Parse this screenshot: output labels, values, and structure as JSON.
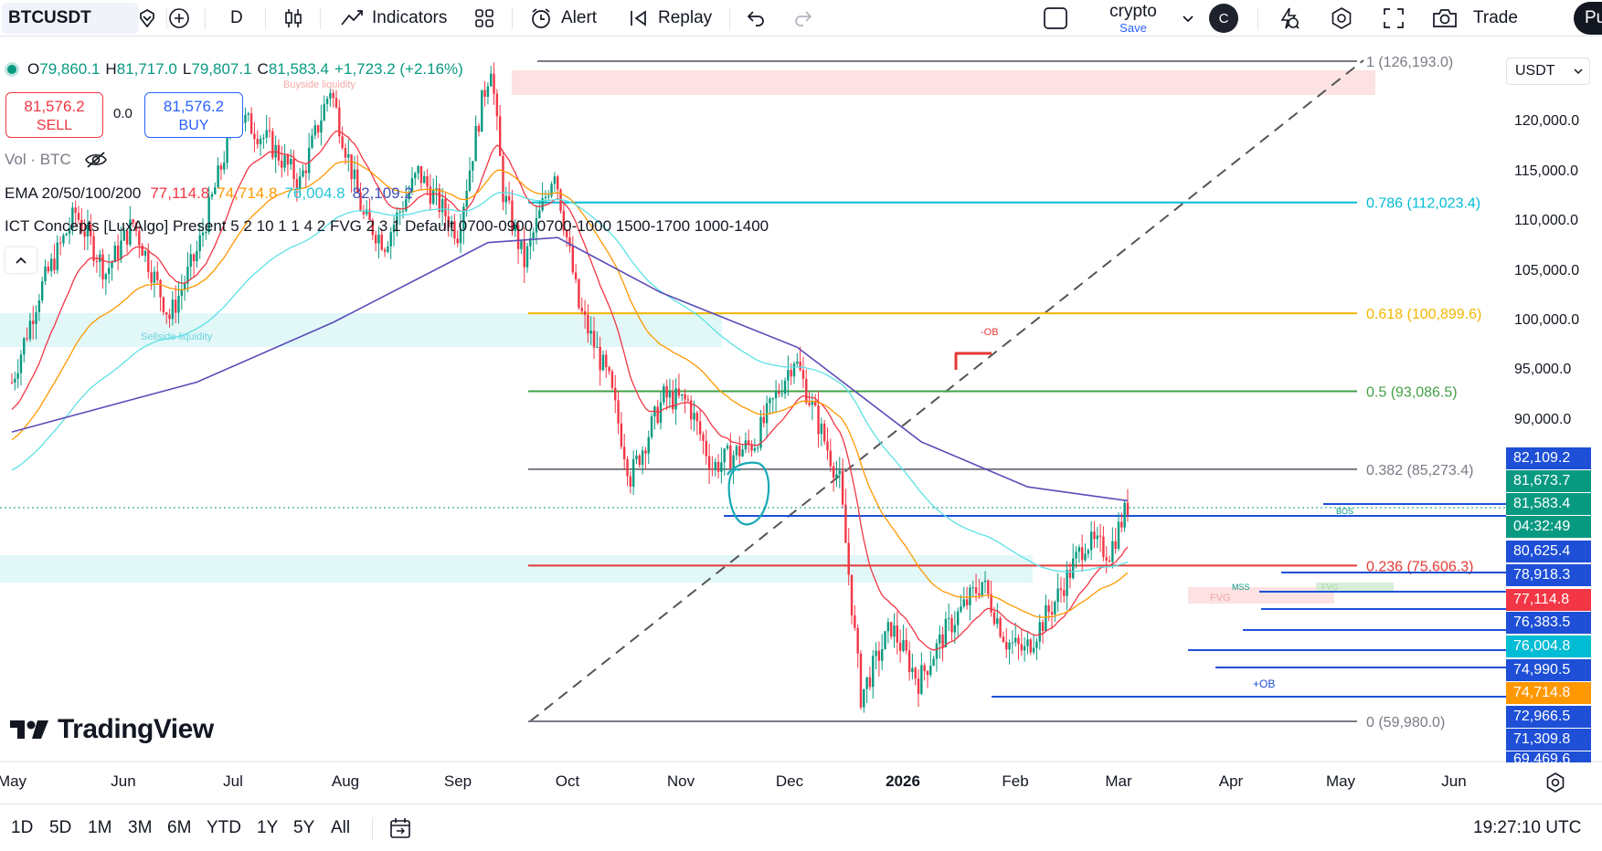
{
  "toolbar": {
    "symbol": "BTCUSDT",
    "interval": "D",
    "indicators_label": "Indicators",
    "alert_label": "Alert",
    "replay_label": "Replay",
    "layout_name": "crypto",
    "layout_save": "Save",
    "avatar_letter": "C",
    "trade_label": "Trade",
    "publish_label": "Pu"
  },
  "legend": {
    "o_label": "O",
    "o_value": "79,860.1",
    "h_label": "H",
    "h_value": "81,717.0",
    "l_label": "L",
    "l_value": "79,807.1",
    "c_label": "C",
    "c_value": "81,583.4",
    "change": "+1,723.2 (+2.16%)",
    "sell_price": "81,576.2",
    "sell_label": "SELL",
    "spread": "0.0",
    "buy_price": "81,576.2",
    "buy_label": "BUY",
    "volume": "Vol · BTC",
    "ema_title": "EMA 20/50/100/200",
    "ema_values": [
      "77,114.8",
      "74,714.8",
      "76,004.8",
      "82,109.2"
    ],
    "ict_title": "ICT Concepts [LuxAlgo] Present 5 2 10 1 1 4 2 FVG 2 3 1 Default 0700-0900 0700-1000 1500-1700 1000-1400"
  },
  "colors": {
    "up": "#089981",
    "down": "#f23645",
    "ema20": "#f23645",
    "ema50": "#ff9800",
    "ema100": "#5ce1e6",
    "ema200": "#5b4cb8",
    "fib_786": "#00bcd4",
    "fib_618": "#f2b600",
    "fib_5": "#43a047",
    "fib_382": "#787b86",
    "fib_236": "#e53935",
    "level": "#1e4fd6"
  },
  "price_scale": {
    "currency": "USDT",
    "ticks": [
      "120,000.0",
      "115,000.0",
      "110,000.0",
      "105,000.0",
      "100,000.0",
      "95,000.0",
      "90,000.0"
    ],
    "tags": [
      {
        "text": "82,109.2",
        "color": "#1e4fd6"
      },
      {
        "text": "81,673.7",
        "color": "#089981"
      },
      {
        "text": "81,583.4",
        "color": "#089981"
      },
      {
        "text": "04:32:49",
        "color": "#089981"
      },
      {
        "text": "80,625.4",
        "color": "#1e4fd6"
      },
      {
        "text": "78,918.3",
        "color": "#1e4fd6"
      },
      {
        "text": "77,114.8",
        "color": "#f23645"
      },
      {
        "text": "76,383.5",
        "color": "#1e4fd6"
      },
      {
        "text": "76,004.8",
        "color": "#00bcd4"
      },
      {
        "text": "74,990.5",
        "color": "#1e4fd6"
      },
      {
        "text": "74,714.8",
        "color": "#ff9800"
      },
      {
        "text": "72,966.5",
        "color": "#1e4fd6"
      },
      {
        "text": "71,309.8",
        "color": "#1e4fd6"
      },
      {
        "text": "69,469.6",
        "color": "#1e4fd6"
      }
    ]
  },
  "fib": [
    {
      "label": "1 (126,193.0)",
      "price": 126193.0
    },
    {
      "label": "0.786 (112,023.4)",
      "price": 112023.4
    },
    {
      "label": "0.618 (100,899.6)",
      "price": 100899.6
    },
    {
      "label": "0.5 (93,086.5)",
      "price": 93086.5
    },
    {
      "label": "0.382 (85,273.4)",
      "price": 85273.4
    },
    {
      "label": "0.236 (75,606.3)",
      "price": 75606.3
    },
    {
      "label": "0 (59,980.0)",
      "price": 59980.0
    }
  ],
  "annotations": {
    "buyside": "Buyside liquidity",
    "sellside": "Sellside liquidity",
    "ob": "-OB",
    "bos": "BOS",
    "mss": "MSS",
    "fvg": "FVG",
    "fvg2": "FVG",
    "plus_ob": "+OB"
  },
  "brand": "TradingView",
  "time_axis": [
    "May",
    "Jun",
    "Jul",
    "Aug",
    "Sep",
    "Oct",
    "Nov",
    "Dec",
    "2026",
    "Feb",
    "Mar",
    "Apr",
    "May",
    "Jun"
  ],
  "ranges": [
    "1D",
    "5D",
    "1M",
    "3M",
    "6M",
    "YTD",
    "1Y",
    "5Y",
    "All"
  ],
  "clock": "19:27:10 UTC",
  "chart_data": {
    "type": "candlestick",
    "xlabel": "",
    "ylabel": "",
    "ylim": [
      58000,
      127500
    ],
    "x_range": [
      "2025-05-01",
      "2026-06-08"
    ],
    "last_price": 81583.4,
    "waypoints": [
      [
        "2025-05-01",
        94000
      ],
      [
        "2025-05-10",
        103000
      ],
      [
        "2025-05-22",
        111000
      ],
      [
        "2025-06-01",
        105000
      ],
      [
        "2025-06-10",
        110000
      ],
      [
        "2025-06-22",
        100500
      ],
      [
        "2025-07-01",
        107000
      ],
      [
        "2025-07-14",
        121000
      ],
      [
        "2025-07-25",
        118000
      ],
      [
        "2025-08-04",
        114000
      ],
      [
        "2025-08-14",
        123500
      ],
      [
        "2025-08-25",
        110500
      ],
      [
        "2025-09-01",
        108000
      ],
      [
        "2025-09-12",
        115000
      ],
      [
        "2025-09-25",
        109000
      ],
      [
        "2025-10-03",
        122000
      ],
      [
        "2025-10-06",
        126000
      ],
      [
        "2025-10-10",
        113000
      ],
      [
        "2025-10-17",
        106000
      ],
      [
        "2025-10-27",
        115500
      ],
      [
        "2025-11-04",
        101500
      ],
      [
        "2025-11-14",
        94000
      ],
      [
        "2025-11-21",
        84500
      ],
      [
        "2025-12-02",
        92500
      ],
      [
        "2025-12-10",
        92000
      ],
      [
        "2025-12-18",
        85500
      ],
      [
        "2026-01-01",
        88000
      ],
      [
        "2026-01-14",
        96500
      ],
      [
        "2026-01-20",
        91500
      ],
      [
        "2026-01-29",
        84000
      ],
      [
        "2026-02-05",
        62500
      ],
      [
        "2026-02-15",
        69500
      ],
      [
        "2026-02-24",
        64000
      ],
      [
        "2026-03-05",
        69000
      ],
      [
        "2026-03-17",
        74000
      ],
      [
        "2026-03-25",
        68000
      ],
      [
        "2026-03-31",
        67000
      ],
      [
        "2026-04-10",
        72000
      ],
      [
        "2026-04-20",
        78000
      ],
      [
        "2026-04-28",
        77000
      ],
      [
        "2026-05-04",
        81583
      ]
    ],
    "ema200": [
      [
        "2025-05-01",
        89000
      ],
      [
        "2025-07-01",
        94000
      ],
      [
        "2025-08-15",
        100000
      ],
      [
        "2025-10-05",
        108000
      ],
      [
        "2025-10-28",
        108500
      ],
      [
        "2025-12-01",
        103000
      ],
      [
        "2026-01-15",
        97500
      ],
      [
        "2026-02-25",
        88000
      ],
      [
        "2026-04-01",
        83500
      ],
      [
        "2026-05-04",
        82109
      ]
    ]
  }
}
